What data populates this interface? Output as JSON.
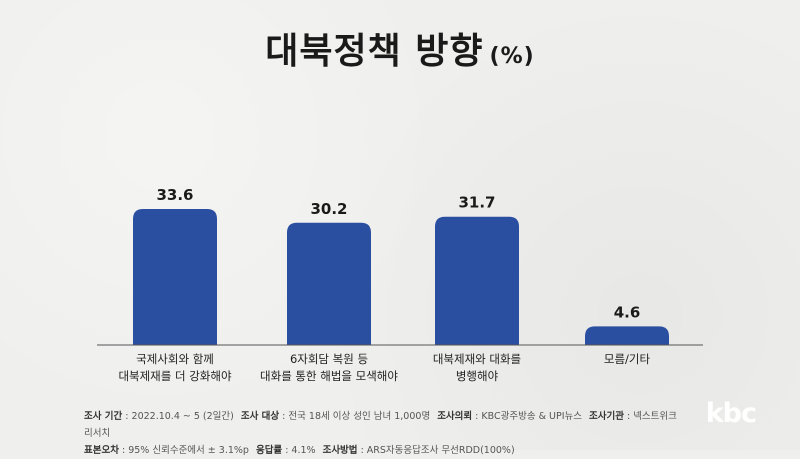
{
  "title": "대북정책 방향",
  "title_unit": "(%)",
  "chart_data": {
    "type": "bar",
    "title": "대북정책 방향 (%)",
    "categories": [
      [
        "국제사회와 함께",
        "대북제재를 더 강화해야"
      ],
      [
        "6자회담 복원 등",
        "대화를 통한 해법을 모색해야"
      ],
      [
        "대북제재와 대화를",
        "병행해야"
      ],
      [
        "모름/기타"
      ]
    ],
    "values": [
      33.6,
      30.2,
      31.7,
      4.6
    ],
    "ylim": [
      0,
      40
    ],
    "bar_color": "#2b4fa0",
    "grid": false,
    "legend": "none"
  },
  "footer": {
    "row1": [
      {
        "label": "조사 기간",
        "value": "2022.10.4 ~ 5 (2일간)"
      },
      {
        "label": "조사 대상",
        "value": "전국 18세 이상 성인 남녀 1,000명"
      },
      {
        "label": "조사의뢰",
        "value": "KBC광주방송 & UPI뉴스"
      },
      {
        "label": "조사기관",
        "value": "넥스트위크리서치"
      }
    ],
    "row2": [
      {
        "label": "표본오차",
        "value": "95% 신뢰수준에서 ± 3.1%p"
      },
      {
        "label": "응답률",
        "value": "4.1%"
      },
      {
        "label": "조사방법",
        "value": "ARS자동응답조사 무선RDD(100%)"
      }
    ]
  },
  "logo": "kbc"
}
